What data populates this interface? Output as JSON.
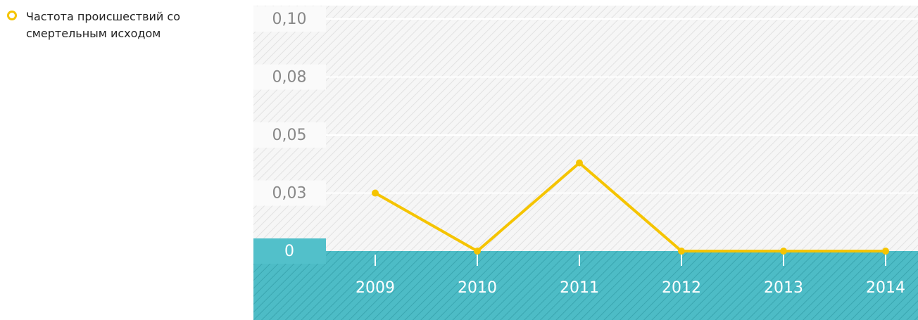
{
  "chart_data": {
    "type": "line",
    "categories": [
      "2009",
      "2010",
      "2011",
      "2012",
      "2013",
      "2014"
    ],
    "series": [
      {
        "name": "Частота происшествий со смертельным исходом",
        "color": "#f5c400",
        "values": [
          0.025,
          0,
          0.038,
          0,
          0,
          0
        ]
      }
    ],
    "ylim": [
      0,
      0.1
    ],
    "yticks": [
      0,
      {
        "value": 0.025,
        "label": "0,03"
      },
      {
        "value": 0.05,
        "label": "0,05"
      },
      {
        "value": 0.075,
        "label": "0,08"
      },
      {
        "value": 0.1,
        "label": "0,10"
      }
    ],
    "grid": true
  }
}
